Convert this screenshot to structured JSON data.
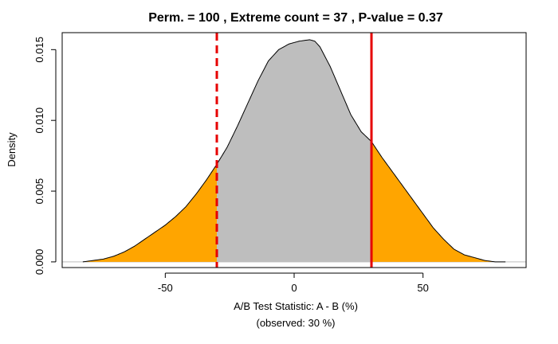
{
  "chart_data": {
    "type": "area",
    "title": "Perm. = 100 , Extreme count = 37 , P-value = 0.37",
    "xlabel": "A/B Test Statistic: A - B (%)",
    "xlabel_sub": "(observed: 30 %)",
    "ylabel": "Density",
    "xlim": [
      -90,
      90
    ],
    "ylim": [
      -0.0004,
      0.0162
    ],
    "x_ticks": [
      -50,
      0,
      50
    ],
    "x_tick_labels": [
      "-50",
      "0",
      "50"
    ],
    "y_ticks": [
      0.0,
      0.005,
      0.01,
      0.015
    ],
    "y_tick_labels": [
      "0.000",
      "0.005",
      "0.010",
      "0.015"
    ],
    "observed": 30,
    "lines": [
      {
        "name": "observed",
        "x": 30,
        "style": "solid",
        "color": "#e60000"
      },
      {
        "name": "negative-observed",
        "x": -30,
        "style": "dashed",
        "color": "#e60000"
      }
    ],
    "fill_colors": {
      "tail": "#ffa500",
      "center": "#bebebe",
      "outline": "#000000"
    },
    "density": {
      "x": [
        -82,
        -78,
        -74,
        -70,
        -66,
        -62,
        -58,
        -54,
        -50,
        -46,
        -42,
        -38,
        -34,
        -30,
        -26,
        -22,
        -18,
        -14,
        -10,
        -6,
        -2,
        2,
        6,
        8,
        10,
        14,
        18,
        22,
        26,
        30,
        34,
        38,
        42,
        46,
        50,
        54,
        58,
        62,
        66,
        70,
        74,
        78,
        82
      ],
      "y": [
        0.0,
        0.0001,
        0.0002,
        0.0004,
        0.0007,
        0.0011,
        0.0016,
        0.0021,
        0.0026,
        0.0032,
        0.0039,
        0.0048,
        0.0058,
        0.0069,
        0.0081,
        0.0096,
        0.0112,
        0.0128,
        0.0142,
        0.015,
        0.0154,
        0.0156,
        0.0157,
        0.0156,
        0.0152,
        0.0138,
        0.0121,
        0.0104,
        0.0092,
        0.0085,
        0.0074,
        0.0064,
        0.0054,
        0.0044,
        0.0034,
        0.0024,
        0.0016,
        0.0009,
        0.0005,
        0.0003,
        0.0001,
        0.0,
        0.0
      ]
    }
  }
}
